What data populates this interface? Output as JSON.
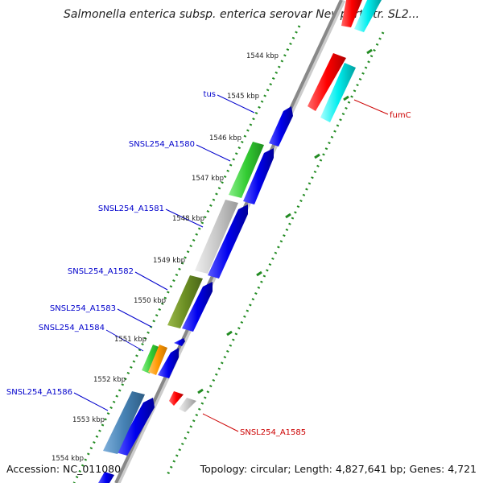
{
  "title": "Salmonella enterica subsp. enterica serovar Newport str. SL2...",
  "accession": "Accession: NC_011080",
  "summary": "Topology: circular; Length: 4,827,641 bp; Genes: 4,721",
  "ticks": [
    "1544 kbp",
    "1545 kbp",
    "1546 kbp",
    "1547 kbp",
    "1548 kbp",
    "1549 kbp",
    "1550 kbp",
    "1551 kbp",
    "1552 kbp",
    "1553 kbp",
    "1554 kbp"
  ],
  "colors": {
    "forward_label": "#0000cc",
    "reverse_label": "#cc0000",
    "backbone": "#888888",
    "tick_dots": "#228b22"
  },
  "forward_genes": [
    {
      "label": "tus",
      "color": "#0000ee"
    },
    {
      "label": "SNSL254_A1580",
      "color": "#0000ee"
    },
    {
      "label": "SNSL254_A1581",
      "color": "#0000ee"
    },
    {
      "label": "SNSL254_A1582",
      "color": "#0000ee"
    },
    {
      "label": "SNSL254_A1583",
      "color": "#0000ee"
    },
    {
      "label": "SNSL254_A1584",
      "color": "#0000ee"
    },
    {
      "label": "SNSL254_A1586",
      "color": "#0000ee"
    }
  ],
  "reverse_genes": [
    {
      "label": "fumC",
      "color": "#ff0000"
    },
    {
      "label": "SNSL254_A1585",
      "color": "#ff0000"
    }
  ],
  "features": [
    {
      "name": "green-cds",
      "color": "#33cc33"
    },
    {
      "name": "gray-cds",
      "color": "#c8c8c8"
    },
    {
      "name": "olive-cds",
      "color": "#6b8e23"
    },
    {
      "name": "orange-cds",
      "color": "#ff9900"
    },
    {
      "name": "steelblue-cds",
      "color": "#4682b4"
    },
    {
      "name": "cyan-cds",
      "color": "#00eeee"
    }
  ]
}
